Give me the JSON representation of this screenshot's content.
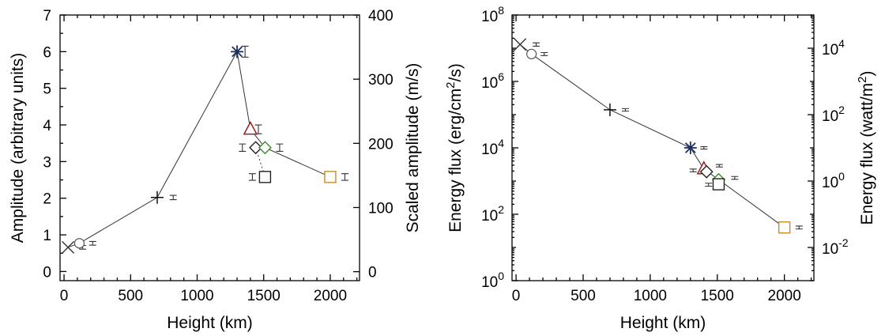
{
  "chart_data": [
    {
      "type": "scatter",
      "xlabel": "Height (km)",
      "ylabel": "Amplitude (arbitrary units)",
      "ylabel_right": "Scaled amplitude (m/s)",
      "xlim": [
        -30,
        2220
      ],
      "ylim": [
        -0.25,
        7.0
      ],
      "ylim_right": [
        -14,
        400
      ],
      "xticks": [
        0,
        500,
        1000,
        1500,
        2000
      ],
      "yticks": [
        0,
        1,
        2,
        3,
        4,
        5,
        6,
        7
      ],
      "yticks_right": [
        0,
        100,
        200,
        300,
        400
      ],
      "line": {
        "x": [
          30,
          115,
          700,
          1300,
          1400,
          1510,
          2000
        ],
        "y": [
          0.66,
          0.77,
          2.02,
          6.0,
          3.88,
          3.38,
          2.58
        ]
      },
      "dotted_line": {
        "x": [
          1440,
          1510
        ],
        "y": [
          3.38,
          2.58
        ]
      },
      "points": [
        {
          "marker": "x",
          "x": 30,
          "y": 0.66,
          "color": "#333333"
        },
        {
          "marker": "circle",
          "x": 115,
          "y": 0.77,
          "color": "#555555"
        },
        {
          "marker": "plus",
          "x": 700,
          "y": 2.02,
          "color": "#111111"
        },
        {
          "marker": "asterisk",
          "x": 1300,
          "y": 6.0,
          "color": "#1a2f5e"
        },
        {
          "marker": "triangle",
          "x": 1400,
          "y": 3.88,
          "color": "#9b1c1c"
        },
        {
          "marker": "diamond",
          "x": 1440,
          "y": 3.38,
          "color": "#222222"
        },
        {
          "marker": "diamond",
          "x": 1510,
          "y": 3.38,
          "color": "#3c8c2c"
        },
        {
          "marker": "square",
          "x": 1510,
          "y": 2.58,
          "color": "#222222"
        },
        {
          "marker": "square",
          "x": 2000,
          "y": 2.58,
          "color": "#c98a2a"
        }
      ],
      "errorbars": [
        {
          "x": 140,
          "y": 0.66,
          "lo": 0.61,
          "hi": 0.71
        },
        {
          "x": 215,
          "y": 0.77,
          "lo": 0.72,
          "hi": 0.82
        },
        {
          "x": 820,
          "y": 2.02,
          "lo": 1.96,
          "hi": 2.08
        },
        {
          "x": 1360,
          "y": 6.0,
          "lo": 5.85,
          "hi": 6.15
        },
        {
          "x": 1460,
          "y": 3.88,
          "lo": 3.76,
          "hi": 4.0
        },
        {
          "x": 1340,
          "y": 3.38,
          "lo": 3.28,
          "hi": 3.48
        },
        {
          "x": 1620,
          "y": 3.38,
          "lo": 3.28,
          "hi": 3.48
        },
        {
          "x": 1415,
          "y": 2.58,
          "lo": 2.49,
          "hi": 2.67
        },
        {
          "x": 2110,
          "y": 2.58,
          "lo": 2.49,
          "hi": 2.67
        }
      ]
    },
    {
      "type": "scatter",
      "xlabel": "Height (km)",
      "ylabel": "Energy flux (erg/cm²/s)",
      "ylabel_right": "Energy flux (watt/m²)",
      "xscale": "linear",
      "yscale": "log",
      "xlim": [
        -30,
        2220
      ],
      "ylim_log10": [
        0,
        8
      ],
      "ylim_right_log10": [
        -3,
        5
      ],
      "xticks": [
        0,
        500,
        1000,
        1500,
        2000
      ],
      "yticks_log10": [
        0,
        2,
        4,
        6,
        8
      ],
      "yticks_right_log10": [
        -2,
        0,
        2,
        4
      ],
      "tick_base": "10",
      "line": {
        "x": [
          30,
          115,
          700,
          1300,
          1400,
          1510,
          2000
        ],
        "y": [
          13000000,
          6700000,
          140000,
          10000,
          2300,
          1100,
          40
        ]
      },
      "points": [
        {
          "marker": "x",
          "x": 30,
          "y": 13000000,
          "color": "#333333"
        },
        {
          "marker": "circle",
          "x": 115,
          "y": 6700000,
          "color": "#555555"
        },
        {
          "marker": "plus",
          "x": 700,
          "y": 140000,
          "color": "#111111"
        },
        {
          "marker": "asterisk",
          "x": 1300,
          "y": 10000,
          "color": "#1a2f5e"
        },
        {
          "marker": "triangle",
          "x": 1400,
          "y": 2300,
          "color": "#9b1c1c"
        },
        {
          "marker": "diamond",
          "x": 1420,
          "y": 1900,
          "color": "#222222"
        },
        {
          "marker": "diamond",
          "x": 1510,
          "y": 1100,
          "color": "#3c8c2c"
        },
        {
          "marker": "square",
          "x": 1510,
          "y": 800,
          "color": "#222222"
        },
        {
          "marker": "square",
          "x": 2000,
          "y": 40,
          "color": "#c98a2a"
        }
      ],
      "errorbars": [
        {
          "x": 150,
          "y": 13000000,
          "lo": 11500000,
          "hi": 14500000
        },
        {
          "x": 210,
          "y": 6700000,
          "lo": 6000000,
          "hi": 7400000
        },
        {
          "x": 815,
          "y": 140000,
          "lo": 128000,
          "hi": 152000
        },
        {
          "x": 1400,
          "y": 10000,
          "lo": 9200,
          "hi": 10800
        },
        {
          "x": 1320,
          "y": 2100,
          "lo": 1900,
          "hi": 2300
        },
        {
          "x": 1515,
          "y": 2900,
          "lo": 2650,
          "hi": 3150
        },
        {
          "x": 1630,
          "y": 1250,
          "lo": 1130,
          "hi": 1370
        },
        {
          "x": 1435,
          "y": 780,
          "lo": 700,
          "hi": 860
        },
        {
          "x": 2110,
          "y": 40,
          "lo": 36,
          "hi": 44
        }
      ]
    }
  ]
}
